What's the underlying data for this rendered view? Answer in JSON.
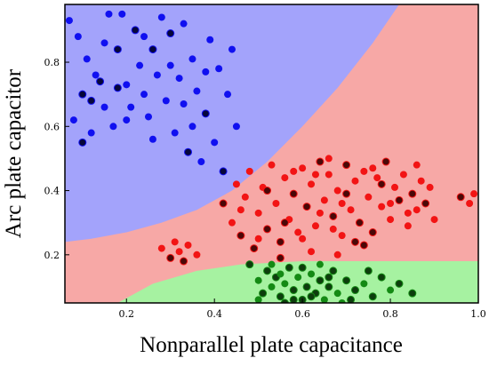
{
  "chart_data": {
    "type": "scatter",
    "title": "",
    "xlabel": "Nonparallel plate capacitance",
    "ylabel": "Arc plate capacitor",
    "xlim": [
      0.06,
      1.0
    ],
    "ylim": [
      0.05,
      0.98
    ],
    "xticks": [
      0.2,
      0.4,
      0.6,
      0.8,
      1.0
    ],
    "xtick_labels": [
      "0.2",
      "0.4",
      "0.6",
      "0.8",
      "1.0"
    ],
    "yticks": [
      0.2,
      0.4,
      0.6,
      0.8
    ],
    "ytick_labels": [
      "0.2",
      "0.4",
      "0.6",
      "0.8"
    ],
    "grid": false,
    "legend": "none",
    "regions": [
      {
        "class": "blue",
        "color": "#a3a3fb",
        "boundary": [
          [
            0.06,
            0.24
          ],
          [
            0.12,
            0.25
          ],
          [
            0.2,
            0.27
          ],
          [
            0.28,
            0.3
          ],
          [
            0.36,
            0.34
          ],
          [
            0.44,
            0.4
          ],
          [
            0.52,
            0.49
          ],
          [
            0.6,
            0.6
          ],
          [
            0.68,
            0.72
          ],
          [
            0.76,
            0.86
          ],
          [
            0.82,
            0.98
          ]
        ]
      },
      {
        "class": "red",
        "color": "#f7a8a6"
      },
      {
        "class": "green",
        "color": "#a6f2a1",
        "boundary": [
          [
            0.18,
            0.05
          ],
          [
            0.26,
            0.11
          ],
          [
            0.36,
            0.15
          ],
          [
            0.46,
            0.17
          ],
          [
            0.6,
            0.18
          ],
          [
            0.8,
            0.18
          ],
          [
            1.0,
            0.18
          ]
        ]
      }
    ],
    "series": [
      {
        "color": "#1010f0",
        "dark_color": "#06063a",
        "values": [
          [
            0.07,
            0.93
          ],
          [
            0.08,
            0.62
          ],
          [
            0.09,
            0.88
          ],
          [
            0.1,
            0.7
          ],
          [
            0.11,
            0.81
          ],
          [
            0.12,
            0.58
          ],
          [
            0.13,
            0.76
          ],
          [
            0.14,
            0.74
          ],
          [
            0.15,
            0.66
          ],
          [
            0.15,
            0.86
          ],
          [
            0.17,
            0.6
          ],
          [
            0.18,
            0.84
          ],
          [
            0.19,
            0.95
          ],
          [
            0.2,
            0.73
          ],
          [
            0.21,
            0.66
          ],
          [
            0.22,
            0.9
          ],
          [
            0.23,
            0.79
          ],
          [
            0.24,
            0.7
          ],
          [
            0.25,
            0.63
          ],
          [
            0.26,
            0.84
          ],
          [
            0.27,
            0.76
          ],
          [
            0.28,
            0.94
          ],
          [
            0.29,
            0.68
          ],
          [
            0.3,
            0.89
          ],
          [
            0.31,
            0.58
          ],
          [
            0.32,
            0.75
          ],
          [
            0.33,
            0.67
          ],
          [
            0.34,
            0.52
          ],
          [
            0.35,
            0.81
          ],
          [
            0.36,
            0.71
          ],
          [
            0.37,
            0.49
          ],
          [
            0.38,
            0.64
          ],
          [
            0.39,
            0.87
          ],
          [
            0.4,
            0.55
          ],
          [
            0.41,
            0.78
          ],
          [
            0.42,
            0.46
          ],
          [
            0.43,
            0.7
          ],
          [
            0.44,
            0.84
          ],
          [
            0.45,
            0.6
          ],
          [
            0.1,
            0.55
          ],
          [
            0.16,
            0.95
          ],
          [
            0.26,
            0.56
          ],
          [
            0.33,
            0.92
          ],
          [
            0.18,
            0.72
          ],
          [
            0.3,
            0.79
          ],
          [
            0.2,
            0.62
          ],
          [
            0.35,
            0.6
          ],
          [
            0.12,
            0.68
          ],
          [
            0.24,
            0.88
          ],
          [
            0.38,
            0.77
          ]
        ],
        "dark_indices": [
          3,
          7,
          11,
          15,
          19,
          23,
          27,
          31,
          35,
          39,
          43,
          47
        ]
      },
      {
        "color": "#f21414",
        "dark_color": "#4a0808",
        "values": [
          [
            0.28,
            0.22
          ],
          [
            0.3,
            0.19
          ],
          [
            0.31,
            0.24
          ],
          [
            0.32,
            0.21
          ],
          [
            0.33,
            0.18
          ],
          [
            0.34,
            0.23
          ],
          [
            0.36,
            0.2
          ],
          [
            0.42,
            0.36
          ],
          [
            0.44,
            0.3
          ],
          [
            0.45,
            0.42
          ],
          [
            0.46,
            0.26
          ],
          [
            0.47,
            0.38
          ],
          [
            0.48,
            0.46
          ],
          [
            0.49,
            0.22
          ],
          [
            0.5,
            0.33
          ],
          [
            0.51,
            0.41
          ],
          [
            0.52,
            0.28
          ],
          [
            0.53,
            0.48
          ],
          [
            0.54,
            0.36
          ],
          [
            0.55,
            0.24
          ],
          [
            0.56,
            0.44
          ],
          [
            0.57,
            0.31
          ],
          [
            0.58,
            0.39
          ],
          [
            0.59,
            0.27
          ],
          [
            0.6,
            0.47
          ],
          [
            0.61,
            0.35
          ],
          [
            0.62,
            0.42
          ],
          [
            0.63,
            0.29
          ],
          [
            0.64,
            0.49
          ],
          [
            0.65,
            0.37
          ],
          [
            0.66,
            0.45
          ],
          [
            0.67,
            0.32
          ],
          [
            0.68,
            0.4
          ],
          [
            0.69,
            0.26
          ],
          [
            0.7,
            0.48
          ],
          [
            0.71,
            0.34
          ],
          [
            0.72,
            0.43
          ],
          [
            0.73,
            0.3
          ],
          [
            0.74,
            0.46
          ],
          [
            0.75,
            0.38
          ],
          [
            0.76,
            0.27
          ],
          [
            0.77,
            0.44
          ],
          [
            0.78,
            0.35
          ],
          [
            0.79,
            0.49
          ],
          [
            0.8,
            0.31
          ],
          [
            0.81,
            0.41
          ],
          [
            0.82,
            0.37
          ],
          [
            0.83,
            0.45
          ],
          [
            0.84,
            0.29
          ],
          [
            0.85,
            0.39
          ],
          [
            0.86,
            0.34
          ],
          [
            0.87,
            0.43
          ],
          [
            0.88,
            0.36
          ],
          [
            0.89,
            0.41
          ],
          [
            0.9,
            0.31
          ],
          [
            0.96,
            0.38
          ],
          [
            0.98,
            0.36
          ],
          [
            0.99,
            0.39
          ],
          [
            0.55,
            0.19
          ],
          [
            0.62,
            0.21
          ],
          [
            0.68,
            0.2
          ],
          [
            0.74,
            0.23
          ],
          [
            0.58,
            0.46
          ],
          [
            0.66,
            0.5
          ],
          [
            0.7,
            0.39
          ],
          [
            0.6,
            0.25
          ],
          [
            0.64,
            0.33
          ],
          [
            0.52,
            0.4
          ],
          [
            0.76,
            0.47
          ],
          [
            0.8,
            0.36
          ],
          [
            0.72,
            0.24
          ],
          [
            0.5,
            0.25
          ],
          [
            0.46,
            0.34
          ],
          [
            0.56,
            0.3
          ],
          [
            0.63,
            0.45
          ],
          [
            0.69,
            0.36
          ],
          [
            0.78,
            0.42
          ],
          [
            0.84,
            0.33
          ],
          [
            0.86,
            0.48
          ],
          [
            0.67,
            0.28
          ]
        ],
        "dark_indices": [
          1,
          4,
          7,
          10,
          13,
          16,
          19,
          22,
          25,
          28,
          31,
          34,
          37,
          40,
          43,
          46,
          49,
          52,
          55,
          58,
          61,
          64,
          67,
          70,
          73,
          76
        ]
      },
      {
        "color": "#148a14",
        "dark_color": "#0d3d0d",
        "values": [
          [
            0.48,
            0.17
          ],
          [
            0.5,
            0.12
          ],
          [
            0.51,
            0.08
          ],
          [
            0.52,
            0.15
          ],
          [
            0.53,
            0.1
          ],
          [
            0.54,
            0.13
          ],
          [
            0.55,
            0.07
          ],
          [
            0.56,
            0.11
          ],
          [
            0.57,
            0.16
          ],
          [
            0.58,
            0.09
          ],
          [
            0.59,
            0.13
          ],
          [
            0.6,
            0.06
          ],
          [
            0.61,
            0.1
          ],
          [
            0.62,
            0.14
          ],
          [
            0.63,
            0.08
          ],
          [
            0.64,
            0.12
          ],
          [
            0.65,
            0.06
          ],
          [
            0.66,
            0.1
          ],
          [
            0.67,
            0.15
          ],
          [
            0.68,
            0.08
          ],
          [
            0.7,
            0.12
          ],
          [
            0.72,
            0.09
          ],
          [
            0.74,
            0.11
          ],
          [
            0.76,
            0.07
          ],
          [
            0.78,
            0.13
          ],
          [
            0.8,
            0.09
          ],
          [
            0.82,
            0.11
          ],
          [
            0.85,
            0.08
          ],
          [
            0.5,
            0.06
          ],
          [
            0.56,
            0.05
          ],
          [
            0.6,
            0.16
          ],
          [
            0.64,
            0.17
          ],
          [
            0.71,
            0.06
          ],
          [
            0.75,
            0.15
          ],
          [
            0.53,
            0.17
          ],
          [
            0.58,
            0.06
          ],
          [
            0.62,
            0.07
          ],
          [
            0.55,
            0.14
          ],
          [
            0.66,
            0.13
          ],
          [
            0.69,
            0.05
          ]
        ],
        "dark_indices": [
          0,
          2,
          3,
          5,
          6,
          8,
          9,
          11,
          12,
          14,
          15,
          17,
          18,
          20,
          21,
          23,
          24,
          26,
          27,
          29,
          30,
          32,
          33,
          35,
          36,
          38
        ]
      }
    ]
  }
}
